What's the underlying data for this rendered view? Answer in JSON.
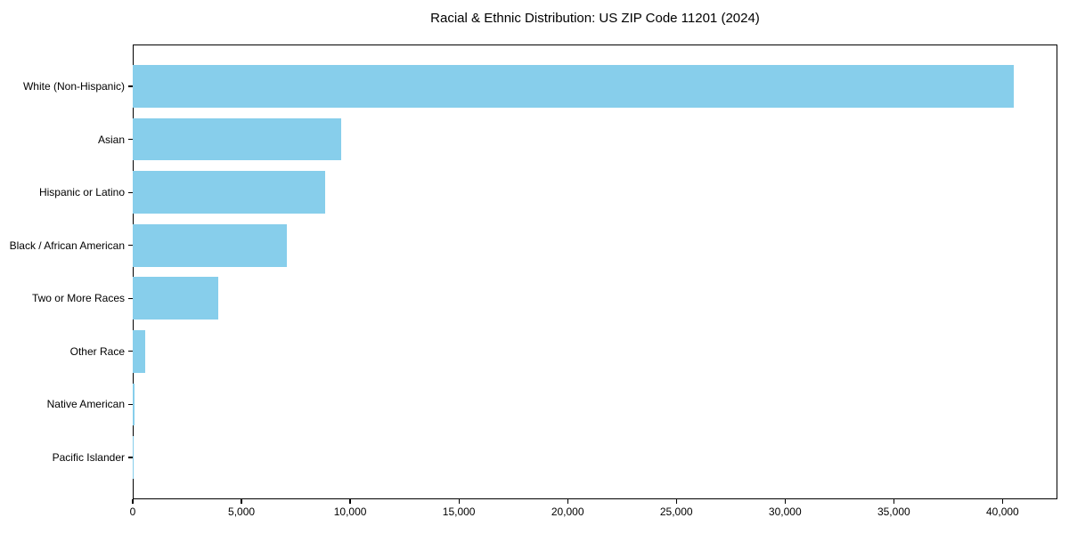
{
  "chart_data": {
    "type": "bar",
    "orientation": "horizontal",
    "title": "Racial & Ethnic Distribution: US ZIP Code 11201 (2024)",
    "xlabel": "",
    "ylabel": "",
    "categories": [
      "White (Non-Hispanic)",
      "Asian",
      "Hispanic or Latino",
      "Black / African American",
      "Two or More Races",
      "Other Race",
      "Native American",
      "Pacific Islander"
    ],
    "values": [
      40500,
      9600,
      8850,
      7100,
      3950,
      575,
      80,
      25
    ],
    "xlim": [
      0,
      42525
    ],
    "xticks": [
      0,
      5000,
      10000,
      15000,
      20000,
      25000,
      30000,
      35000,
      40000
    ],
    "xtick_labels": [
      "0",
      "5,000",
      "10,000",
      "15,000",
      "20,000",
      "25,000",
      "30,000",
      "35,000",
      "40,000"
    ],
    "bar_color": "#87CEEB",
    "spine_color": "#000000",
    "grid": false,
    "legend": null
  }
}
